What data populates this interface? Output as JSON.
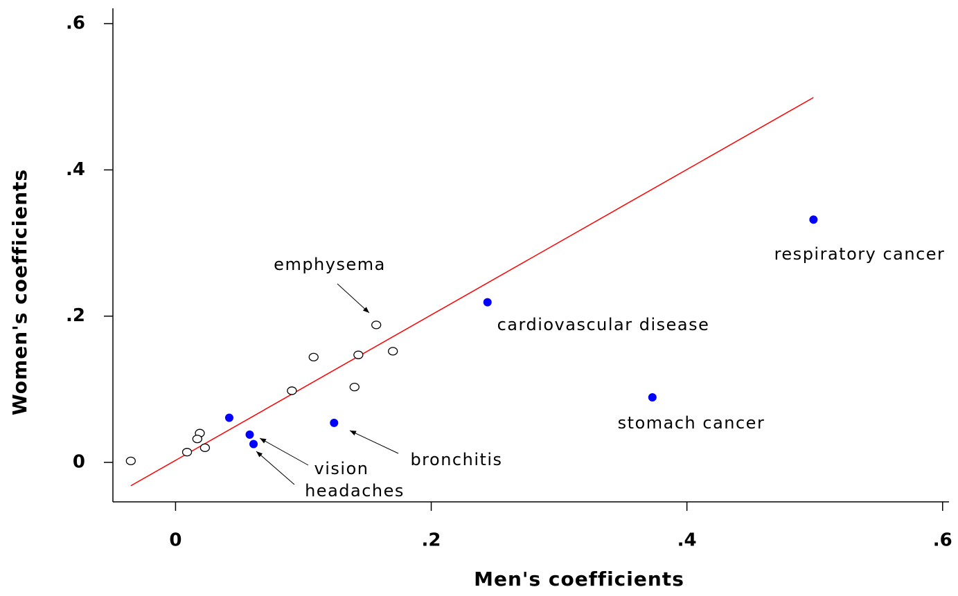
{
  "chart_data": {
    "type": "scatter",
    "x_label": "Men's coefficients",
    "y_label": "Women's coefficients",
    "xlim": [
      -0.049,
      0.605
    ],
    "ylim": [
      -0.054,
      0.621
    ],
    "xticks": [
      0,
      {
        "value": 0.2,
        "label": ".2"
      },
      {
        "value": 0.4,
        "label": ".4"
      },
      {
        "value": 0.6,
        "label": ".6"
      }
    ],
    "yticks": [
      0,
      {
        "value": 0.2,
        "label": ".2"
      },
      {
        "value": 0.4,
        "label": ".4"
      },
      {
        "value": 0.6,
        "label": ".6"
      }
    ],
    "series": [
      {
        "color": "#000000",
        "filled": false,
        "x": [
          -0.035,
          0.009,
          0.019,
          0.017,
          0.023,
          0.091,
          0.108,
          0.14,
          0.143,
          0.157,
          0.17
        ],
        "values": [
          0.002,
          0.014,
          0.04,
          0.032,
          0.02,
          0.098,
          0.144,
          0.103,
          0.147,
          0.188,
          0.152
        ]
      },
      {
        "color": "#0000ff",
        "filled": true,
        "x": [
          0.042,
          0.058,
          0.061,
          0.124,
          0.244,
          0.373,
          0.499
        ],
        "values": [
          0.061,
          0.038,
          0.025,
          0.054,
          0.219,
          0.089,
          0.332
        ]
      }
    ],
    "fit_line": {
      "color": "#ff0000",
      "x": [
        -0.035,
        0.499
      ],
      "values": [
        -0.032,
        0.499
      ]
    },
    "annotations": [
      "emphysema",
      "respiratory cancer",
      "cardiovascular disease",
      "stomach cancer",
      "bronchitis",
      "vision",
      "headaches"
    ]
  }
}
